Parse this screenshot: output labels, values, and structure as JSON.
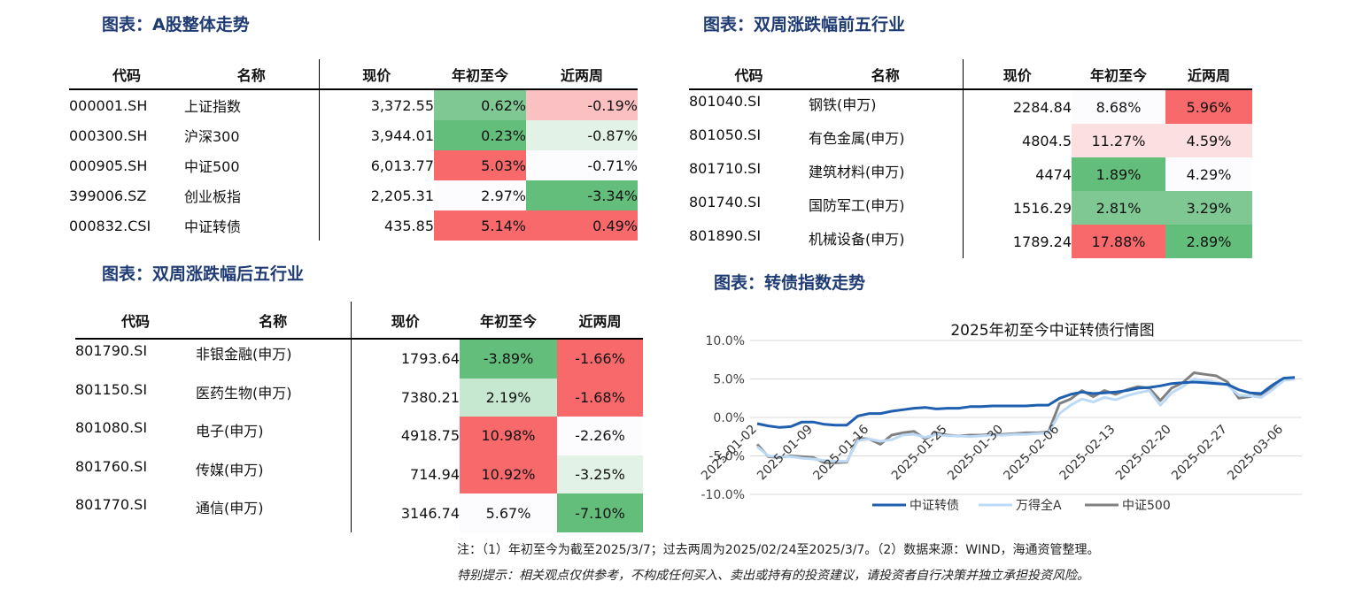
{
  "titles": {
    "a_share": "图表：A股整体走势",
    "top5": "图表：双周涨跌幅前五行业",
    "bottom5": "图表：双周涨跌幅后五行业",
    "cb_index": "图表：转债指数走势"
  },
  "headers": {
    "code": "代码",
    "name": "名称",
    "price": "现价",
    "ytd": "年初至今",
    "two_week": "近两周"
  },
  "colors": {
    "red_strong": "#f8696b",
    "red_light": "#fbc0c2",
    "red_faint": "#fcdfe0",
    "green_strong": "#63be7b",
    "green_mid": "#7fc893",
    "green_light": "#c7e8d0",
    "green_faint": "#e2f2e6",
    "neutral": "#fcfcff",
    "cb_line": "#1f5fb0",
    "wind_line": "#bcd9f5",
    "csi500_line": "#808080"
  },
  "a_share_table": [
    {
      "code": "000001.SH",
      "name": "上证指数",
      "price": "3,372.55",
      "ytd": "0.62%",
      "two_week": "-0.19%",
      "ytd_color": "green_mid",
      "tw_color": "red_light"
    },
    {
      "code": "000300.SH",
      "name": "沪深300",
      "price": "3,944.01",
      "ytd": "0.23%",
      "two_week": "-0.87%",
      "ytd_color": "green_strong",
      "tw_color": "green_faint"
    },
    {
      "code": "000905.SH",
      "name": "中证500",
      "price": "6,013.77",
      "ytd": "5.03%",
      "two_week": "-0.71%",
      "ytd_color": "red_strong",
      "tw_color": "neutral"
    },
    {
      "code": "399006.SZ",
      "name": "创业板指",
      "price": "2,205.31",
      "ytd": "2.97%",
      "two_week": "-3.34%",
      "ytd_color": "neutral",
      "tw_color": "green_strong"
    },
    {
      "code": "000832.CSI",
      "name": "中证转债",
      "price": "435.85",
      "ytd": "5.14%",
      "two_week": "0.49%",
      "ytd_color": "red_strong",
      "tw_color": "red_strong"
    }
  ],
  "top5_table": [
    {
      "code": "801040.SI",
      "name": "钢铁(申万)",
      "price": "2284.84",
      "ytd": "8.68%",
      "two_week": "5.96%",
      "ytd_color": "neutral",
      "tw_color": "red_strong"
    },
    {
      "code": "801050.SI",
      "name": "有色金属(申万)",
      "price": "4804.5",
      "ytd": "11.27%",
      "two_week": "4.59%",
      "ytd_color": "red_faint",
      "tw_color": "red_faint"
    },
    {
      "code": "801710.SI",
      "name": "建筑材料(申万)",
      "price": "4474",
      "ytd": "1.89%",
      "two_week": "4.29%",
      "ytd_color": "green_strong",
      "tw_color": "neutral"
    },
    {
      "code": "801740.SI",
      "name": "国防军工(申万)",
      "price": "1516.29",
      "ytd": "2.81%",
      "two_week": "3.29%",
      "ytd_color": "green_mid",
      "tw_color": "green_mid"
    },
    {
      "code": "801890.SI",
      "name": "机械设备(申万)",
      "price": "1789.24",
      "ytd": "17.88%",
      "two_week": "2.89%",
      "ytd_color": "red_strong",
      "tw_color": "green_strong"
    }
  ],
  "bottom5_table": [
    {
      "code": "801790.SI",
      "name": "非银金融(申万)",
      "price": "1793.64",
      "ytd": "-3.89%",
      "two_week": "-1.66%",
      "ytd_color": "green_strong",
      "tw_color": "red_strong"
    },
    {
      "code": "801150.SI",
      "name": "医药生物(申万)",
      "price": "7380.21",
      "ytd": "2.19%",
      "two_week": "-1.68%",
      "ytd_color": "green_light",
      "tw_color": "red_strong"
    },
    {
      "code": "801080.SI",
      "name": "电子(申万)",
      "price": "4918.75",
      "ytd": "10.98%",
      "two_week": "-2.26%",
      "ytd_color": "red_strong",
      "tw_color": "neutral"
    },
    {
      "code": "801760.SI",
      "name": "传媒(申万)",
      "price": "714.94",
      "ytd": "10.92%",
      "two_week": "-3.25%",
      "ytd_color": "red_strong",
      "tw_color": "green_faint"
    },
    {
      "code": "801770.SI",
      "name": "通信(申万)",
      "price": "3146.74",
      "ytd": "5.67%",
      "two_week": "-7.10%",
      "ytd_color": "neutral",
      "tw_color": "green_strong"
    }
  ],
  "chart_data": {
    "type": "line",
    "title": "2025年初至今中证转债行情图",
    "xlabel": "",
    "ylabel": "",
    "ylim": [
      -10,
      10
    ],
    "yticks": [
      "10.0%",
      "5.0%",
      "0.0%",
      "-5.0%",
      "-10.0%"
    ],
    "ytick_values": [
      10,
      5,
      0,
      -5,
      -10
    ],
    "xtick_labels": [
      "2025-01-02",
      "2025-01-09",
      "2025-01-16",
      "2025-01-25",
      "2025-01-30",
      "2025-02-06",
      "2025-02-13",
      "2025-02-20",
      "2025-02-27",
      "2025-03-06"
    ],
    "x": [
      "2025-01-02",
      "2025-01-03",
      "2025-01-06",
      "2025-01-07",
      "2025-01-08",
      "2025-01-09",
      "2025-01-10",
      "2025-01-13",
      "2025-01-14",
      "2025-01-15",
      "2025-01-16",
      "2025-01-17",
      "2025-01-20",
      "2025-01-21",
      "2025-01-22",
      "2025-01-23",
      "2025-01-24",
      "2025-01-25",
      "2025-01-26",
      "2025-01-27",
      "2025-01-28",
      "2025-01-29",
      "2025-01-30",
      "2025-01-31",
      "2025-02-03",
      "2025-02-04",
      "2025-02-05",
      "2025-02-06",
      "2025-02-07",
      "2025-02-10",
      "2025-02-11",
      "2025-02-12",
      "2025-02-13",
      "2025-02-14",
      "2025-02-17",
      "2025-02-18",
      "2025-02-19",
      "2025-02-20",
      "2025-02-21",
      "2025-02-24",
      "2025-02-25",
      "2025-02-26",
      "2025-02-27",
      "2025-02-28",
      "2025-03-03",
      "2025-03-04",
      "2025-03-05",
      "2025-03-06",
      "2025-03-07"
    ],
    "series": [
      {
        "name": "中证转债",
        "color_key": "cb_line",
        "width": 3,
        "values": [
          -0.8,
          -1.1,
          -1.3,
          -1.2,
          -0.6,
          -0.6,
          -0.9,
          -1.0,
          -1.0,
          0.2,
          0.5,
          0.5,
          0.8,
          1.0,
          1.2,
          1.3,
          1.1,
          1.2,
          1.2,
          1.4,
          1.4,
          1.5,
          1.5,
          1.5,
          1.5,
          1.6,
          1.6,
          2.5,
          3.0,
          3.3,
          3.1,
          3.2,
          3.3,
          3.5,
          3.8,
          3.9,
          4.1,
          4.4,
          4.5,
          4.6,
          4.5,
          4.4,
          4.3,
          3.6,
          3.2,
          3.1,
          4.2,
          5.1,
          5.2
        ]
      },
      {
        "name": "万得全A",
        "color_key": "wind_line",
        "width": 3,
        "values": [
          -3.8,
          -5.0,
          -5.1,
          -5.1,
          -5.3,
          -5.4,
          -5.6,
          -5.7,
          -5.7,
          -3.0,
          -2.8,
          -3.1,
          -2.9,
          -2.3,
          -2.2,
          -2.6,
          -2.2,
          -2.4,
          -2.4,
          -2.5,
          -2.4,
          -2.3,
          -2.3,
          -2.2,
          -2.2,
          -2.1,
          -2.0,
          0.5,
          1.6,
          2.4,
          2.0,
          2.6,
          2.3,
          2.8,
          3.2,
          3.5,
          1.6,
          3.2,
          4.0,
          5.0,
          4.8,
          4.6,
          4.2,
          2.9,
          2.8,
          2.6,
          3.6,
          4.8,
          5.0
        ]
      },
      {
        "name": "中证500",
        "color_key": "csi500_line",
        "width": 3,
        "values": [
          -3.5,
          -5.1,
          -5.2,
          -5.0,
          -5.1,
          -5.2,
          -5.9,
          -5.9,
          -5.8,
          -2.7,
          -2.8,
          -3.5,
          -2.3,
          -2.0,
          -1.8,
          -2.8,
          -2.0,
          -2.3,
          -2.4,
          -2.3,
          -2.3,
          -2.2,
          -2.2,
          -2.1,
          -2.0,
          -2.0,
          -1.9,
          1.8,
          2.4,
          3.5,
          2.7,
          3.5,
          3.0,
          3.6,
          4.0,
          3.8,
          2.2,
          3.8,
          4.5,
          5.8,
          5.6,
          5.4,
          4.6,
          2.5,
          2.7,
          3.0,
          3.9,
          5.0,
          5.0
        ]
      }
    ],
    "legend_position": "bottom",
    "grid": true
  },
  "notes": {
    "line1": "注：（1）年初至今为截至2025/3/7；过去两周为2025/02/24至2025/3/7。（2）数据来源：WIND，海通资管整理。",
    "line2": "特别提示：相关观点仅供参考，不构成任何买入、卖出或持有的投资建议，请投资者自行决策并独立承担投资风险。"
  }
}
